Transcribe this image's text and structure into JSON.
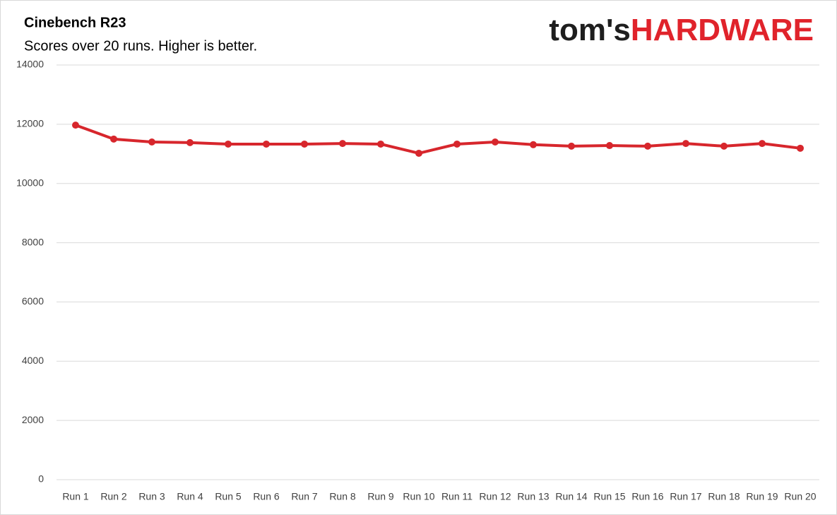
{
  "chart_data": {
    "type": "line",
    "title": "Cinebench R23",
    "subtitle": "Scores over 20 runs. Higher is better.",
    "logo": {
      "brand": "tom's",
      "name": "HARDWARE"
    },
    "categories": [
      "Run 1",
      "Run 2",
      "Run 3",
      "Run 4",
      "Run 5",
      "Run 6",
      "Run 7",
      "Run 8",
      "Run 9",
      "Run 10",
      "Run 11",
      "Run 12",
      "Run 13",
      "Run 14",
      "Run 15",
      "Run 16",
      "Run 17",
      "Run 18",
      "Run 19",
      "Run 20"
    ],
    "values": [
      11970,
      11500,
      11400,
      11380,
      11330,
      11330,
      11330,
      11350,
      11330,
      11020,
      11330,
      11400,
      11310,
      11260,
      11280,
      11260,
      11350,
      11260,
      11350,
      11190
    ],
    "color": "#d7262c",
    "ylim": [
      0,
      14000
    ],
    "yticks": [
      0,
      2000,
      4000,
      6000,
      8000,
      10000,
      12000,
      14000
    ],
    "grid": true
  }
}
